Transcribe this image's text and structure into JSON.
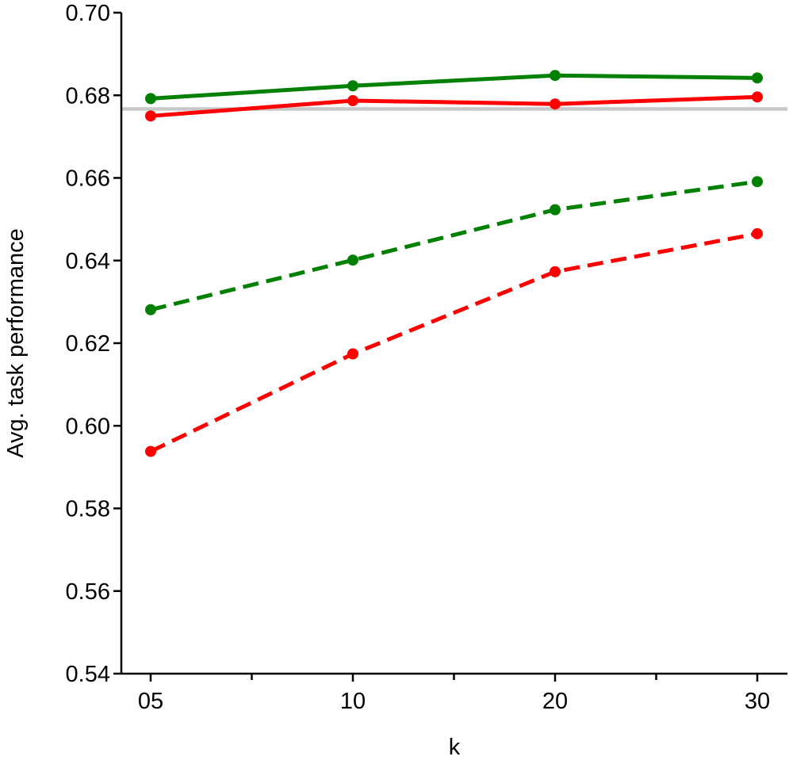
{
  "chart_data": {
    "type": "line",
    "xlabel": "k",
    "ylabel": "Avg. task performance",
    "x_categories": [
      "05",
      "10",
      "20",
      "30"
    ],
    "x_minor_ticks": 3,
    "ylim": [
      0.54,
      0.7
    ],
    "y_ticks": [
      "0.54",
      "0.56",
      "0.58",
      "0.60",
      "0.62",
      "0.64",
      "0.66",
      "0.68",
      "0.70"
    ],
    "y_tick_values": [
      0.54,
      0.56,
      0.58,
      0.6,
      0.62,
      0.64,
      0.66,
      0.68,
      0.7
    ],
    "reference_line": {
      "y": 0.6767,
      "color": "#c8c8c8"
    },
    "grid": false,
    "legend": "none",
    "series": [
      {
        "color": "#008000",
        "dash": "solid",
        "values": [
          0.6792,
          0.6823,
          0.6848,
          0.6842
        ]
      },
      {
        "color": "#ff0000",
        "dash": "solid",
        "values": [
          0.675,
          0.6787,
          0.6779,
          0.6796
        ]
      },
      {
        "color": "#008000",
        "dash": "dashed",
        "values": [
          0.6281,
          0.6401,
          0.6523,
          0.6591
        ]
      },
      {
        "color": "#ff0000",
        "dash": "dashed",
        "values": [
          0.5938,
          0.6174,
          0.6373,
          0.6465
        ]
      }
    ]
  }
}
